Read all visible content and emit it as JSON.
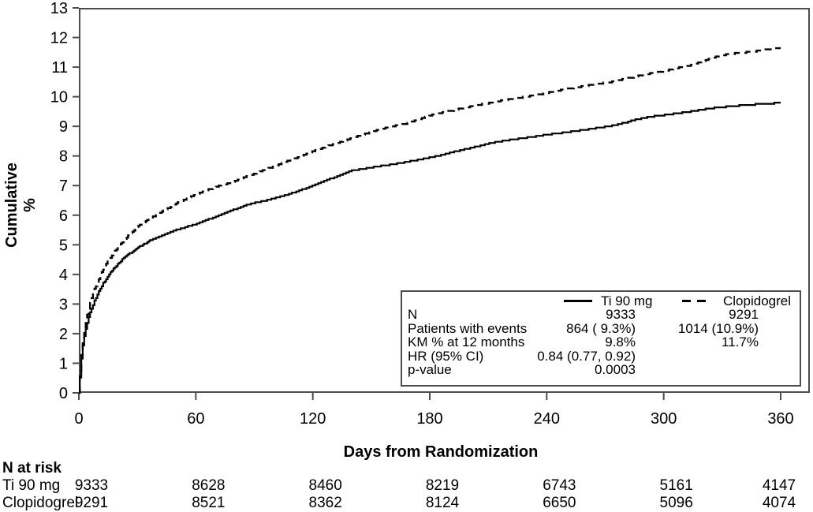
{
  "chart_data": {
    "type": "line",
    "title": "",
    "xlabel": "Days from Randomization",
    "ylabel": "Cumulative %",
    "xlim": [
      0,
      375
    ],
    "ylim": [
      0,
      13
    ],
    "x_ticks": [
      0,
      60,
      120,
      180,
      240,
      300,
      360
    ],
    "y_ticks": [
      0,
      1,
      2,
      3,
      4,
      5,
      6,
      7,
      8,
      9,
      10,
      11,
      12,
      13
    ],
    "grid": false,
    "legend_position": "inside-bottom-right",
    "series": [
      {
        "name": "Ti 90 mg",
        "line_style": "solid",
        "color": "#000000",
        "km_pct_12_months": 9.8,
        "points": [
          [
            0,
            0
          ],
          [
            1,
            1.0
          ],
          [
            2,
            1.6
          ],
          [
            3,
            2.0
          ],
          [
            4,
            2.3
          ],
          [
            5,
            2.55
          ],
          [
            6,
            2.75
          ],
          [
            8,
            3.1
          ],
          [
            10,
            3.4
          ],
          [
            12,
            3.65
          ],
          [
            14,
            3.85
          ],
          [
            16,
            4.05
          ],
          [
            18,
            4.2
          ],
          [
            20,
            4.35
          ],
          [
            23,
            4.55
          ],
          [
            26,
            4.7
          ],
          [
            30,
            4.9
          ],
          [
            34,
            5.05
          ],
          [
            38,
            5.2
          ],
          [
            42,
            5.3
          ],
          [
            46,
            5.4
          ],
          [
            50,
            5.5
          ],
          [
            55,
            5.6
          ],
          [
            60,
            5.7
          ],
          [
            66,
            5.85
          ],
          [
            72,
            6.0
          ],
          [
            78,
            6.15
          ],
          [
            84,
            6.3
          ],
          [
            90,
            6.42
          ],
          [
            96,
            6.5
          ],
          [
            102,
            6.6
          ],
          [
            108,
            6.72
          ],
          [
            114,
            6.85
          ],
          [
            120,
            7.0
          ],
          [
            126,
            7.15
          ],
          [
            133,
            7.33
          ],
          [
            140,
            7.5
          ],
          [
            147,
            7.58
          ],
          [
            154,
            7.65
          ],
          [
            161,
            7.72
          ],
          [
            168,
            7.8
          ],
          [
            175,
            7.88
          ],
          [
            182,
            7.97
          ],
          [
            189,
            8.08
          ],
          [
            196,
            8.2
          ],
          [
            203,
            8.3
          ],
          [
            210,
            8.42
          ],
          [
            217,
            8.5
          ],
          [
            224,
            8.57
          ],
          [
            231,
            8.63
          ],
          [
            238,
            8.7
          ],
          [
            245,
            8.76
          ],
          [
            252,
            8.82
          ],
          [
            259,
            8.88
          ],
          [
            266,
            8.95
          ],
          [
            273,
            9.02
          ],
          [
            280,
            9.12
          ],
          [
            287,
            9.25
          ],
          [
            294,
            9.33
          ],
          [
            300,
            9.38
          ],
          [
            307,
            9.44
          ],
          [
            314,
            9.5
          ],
          [
            321,
            9.58
          ],
          [
            328,
            9.64
          ],
          [
            335,
            9.68
          ],
          [
            342,
            9.72
          ],
          [
            349,
            9.75
          ],
          [
            356,
            9.78
          ],
          [
            360,
            9.8
          ]
        ]
      },
      {
        "name": "Clopidogrel",
        "line_style": "dashed",
        "color": "#000000",
        "km_pct_12_months": 11.7,
        "points": [
          [
            0,
            0
          ],
          [
            1,
            1.1
          ],
          [
            2,
            1.8
          ],
          [
            3,
            2.2
          ],
          [
            4,
            2.55
          ],
          [
            5,
            2.85
          ],
          [
            6,
            3.1
          ],
          [
            8,
            3.5
          ],
          [
            10,
            3.8
          ],
          [
            12,
            4.1
          ],
          [
            14,
            4.35
          ],
          [
            16,
            4.55
          ],
          [
            18,
            4.75
          ],
          [
            20,
            4.9
          ],
          [
            23,
            5.15
          ],
          [
            26,
            5.35
          ],
          [
            30,
            5.6
          ],
          [
            34,
            5.8
          ],
          [
            38,
            5.95
          ],
          [
            42,
            6.1
          ],
          [
            46,
            6.25
          ],
          [
            50,
            6.4
          ],
          [
            55,
            6.55
          ],
          [
            60,
            6.7
          ],
          [
            66,
            6.85
          ],
          [
            72,
            7.0
          ],
          [
            78,
            7.1
          ],
          [
            84,
            7.25
          ],
          [
            90,
            7.4
          ],
          [
            96,
            7.55
          ],
          [
            102,
            7.7
          ],
          [
            108,
            7.85
          ],
          [
            114,
            8.0
          ],
          [
            120,
            8.15
          ],
          [
            126,
            8.3
          ],
          [
            133,
            8.45
          ],
          [
            140,
            8.6
          ],
          [
            147,
            8.75
          ],
          [
            154,
            8.9
          ],
          [
            161,
            9.0
          ],
          [
            168,
            9.1
          ],
          [
            175,
            9.25
          ],
          [
            182,
            9.4
          ],
          [
            189,
            9.5
          ],
          [
            196,
            9.6
          ],
          [
            203,
            9.7
          ],
          [
            210,
            9.78
          ],
          [
            217,
            9.87
          ],
          [
            224,
            9.95
          ],
          [
            231,
            10.02
          ],
          [
            238,
            10.1
          ],
          [
            245,
            10.2
          ],
          [
            252,
            10.28
          ],
          [
            259,
            10.36
          ],
          [
            266,
            10.44
          ],
          [
            273,
            10.5
          ],
          [
            280,
            10.6
          ],
          [
            287,
            10.7
          ],
          [
            294,
            10.8
          ],
          [
            300,
            10.87
          ],
          [
            307,
            10.97
          ],
          [
            314,
            11.07
          ],
          [
            321,
            11.22
          ],
          [
            328,
            11.38
          ],
          [
            335,
            11.45
          ],
          [
            342,
            11.5
          ],
          [
            349,
            11.55
          ],
          [
            356,
            11.62
          ],
          [
            360,
            11.65
          ]
        ]
      }
    ]
  },
  "legend": {
    "entries": [
      {
        "label": "Ti 90 mg",
        "line_style": "solid"
      },
      {
        "label": "Clopidogrel",
        "line_style": "dashed"
      }
    ],
    "rows": [
      {
        "label": "N",
        "v1": "9333",
        "v2": "9291"
      },
      {
        "label": "Patients with events",
        "v1": "864 ( 9.3%)",
        "v2": "1014 (10.9%)"
      },
      {
        "label": "KM % at 12 months",
        "v1": "9.8%",
        "v2": "11.7%"
      },
      {
        "label": "HR (95% CI)",
        "v1": "0.84 (0.77, 0.92)",
        "v2": ""
      },
      {
        "label": "p-value",
        "v1": "0.0003",
        "v2": ""
      }
    ]
  },
  "risk_table": {
    "title": "N at risk",
    "columns_days": [
      0,
      60,
      120,
      180,
      240,
      300,
      360
    ],
    "rows": [
      {
        "label": "Ti 90 mg",
        "values": [
          "9333",
          "8628",
          "8460",
          "8219",
          "6743",
          "5161",
          "4147"
        ]
      },
      {
        "label": "Clopidogrel",
        "values": [
          "9291",
          "8521",
          "8362",
          "8124",
          "6650",
          "5096",
          "4074"
        ]
      }
    ]
  },
  "colors": {
    "curve": "#000000",
    "axis": "#4d4d4d",
    "text": "#000000",
    "background": "#ffffff"
  }
}
